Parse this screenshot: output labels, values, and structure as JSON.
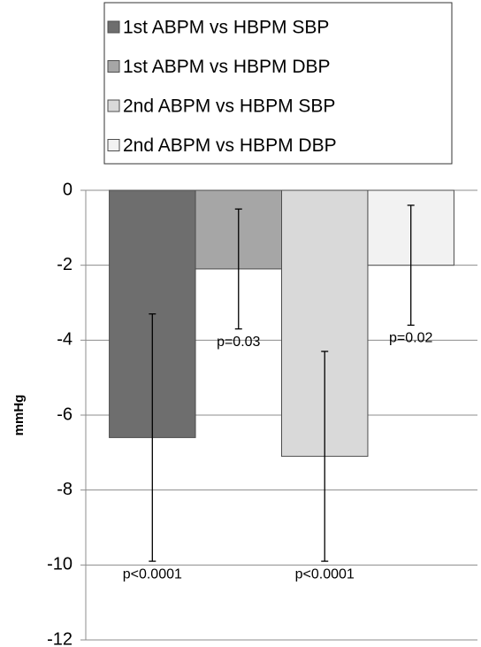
{
  "chart_data": {
    "type": "bar",
    "y_label": "mmHg",
    "categories": [
      null
    ],
    "series": [
      {
        "name": "1st ABPM vs HBPM SBP",
        "color": "#6e6e6e",
        "values": [
          -6.6
        ],
        "errors": [
          3.3
        ],
        "annotation": "p<0.0001"
      },
      {
        "name": "1st ABPM vs HBPM DBP",
        "color": "#a6a6a6",
        "values": [
          -2.1
        ],
        "errors": [
          1.6
        ],
        "annotation": "p=0.03"
      },
      {
        "name": "2nd ABPM vs HBPM SBP",
        "color": "#d9d9d9",
        "values": [
          -7.1
        ],
        "errors": [
          2.8
        ],
        "annotation": "p<0.0001"
      },
      {
        "name": "2nd ABPM vs HBPM DBP",
        "color": "#f2f2f2",
        "values": [
          -2.0
        ],
        "errors": [
          1.6
        ],
        "annotation": "p=0.02"
      }
    ],
    "ylim": [
      -12,
      0
    ],
    "yticks": [
      -12,
      -10,
      -8,
      -6,
      -4,
      -2,
      0
    ],
    "grid": true,
    "legend": "top"
  }
}
